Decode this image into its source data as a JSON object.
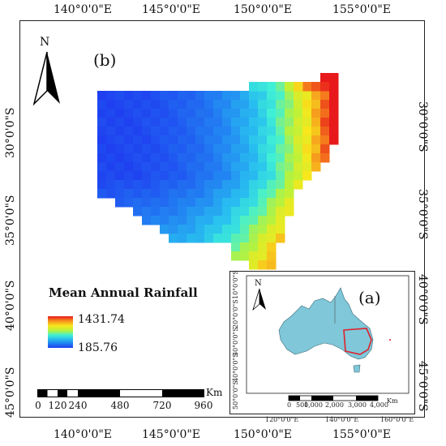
{
  "map": {
    "panel_b_label": "(b)",
    "panel_a_label": "(a)",
    "north_label": "N",
    "lon_ticks": [
      "140°0'0\"E",
      "145°0'0\"E",
      "150°0'0\"E",
      "155°0'0\"E"
    ],
    "lat_ticks": [
      "30°0'0\"S",
      "35°0'0\"S",
      "40°0'0\"S",
      "45°0'0\"S"
    ],
    "legend": {
      "title": "Mean Annual Rainfall",
      "max": "1431.74",
      "min": "185.76",
      "ramp_colors": [
        "#e8191a",
        "#f7911d",
        "#f7e71c",
        "#b9f23a",
        "#3ff0d6",
        "#22a6f2",
        "#1f3ff0"
      ]
    },
    "scale_bar": {
      "unit": "Km",
      "labels": [
        "0",
        "120",
        "240",
        "480",
        "720",
        "960"
      ]
    },
    "inset": {
      "north_label": "N",
      "lon_ticks": [
        "120°0'0\"E",
        "140°0'0\"E",
        "160°0'0\"E"
      ],
      "lat_ticks": [
        "10°0'0\"S",
        "20°0'0\"S",
        "30°0'0\"S",
        "40°0'0\"S",
        "50°0'0\"S"
      ],
      "scale_unit": "Km",
      "scale_labels": [
        "0",
        "500",
        "1,000",
        "2,000",
        "3,000",
        "4,000"
      ],
      "land_color": "#7fc7d9",
      "highlight_color": "#e0202a"
    }
  }
}
